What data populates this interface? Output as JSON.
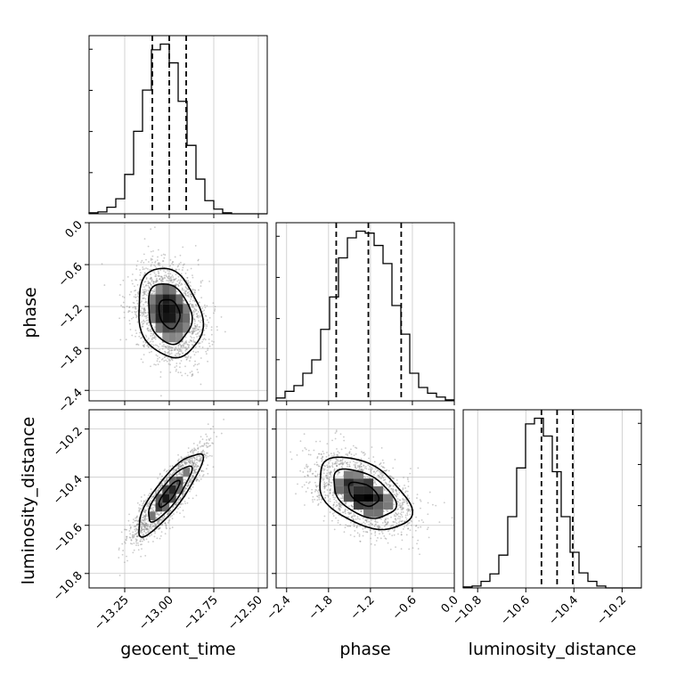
{
  "chart_data": {
    "type": "corner",
    "parameters": [
      "geocent_time",
      "phase",
      "luminosity_distance"
    ],
    "ranges": {
      "geocent_time": [
        -13.45,
        -12.45
      ],
      "phase": [
        -2.55,
        0.0
      ],
      "luminosity_distance": [
        -10.86,
        -10.12
      ]
    },
    "ticks": {
      "geocent_time": [
        -13.25,
        -13.0,
        -12.75,
        -12.5
      ],
      "phase": [
        -2.4,
        -1.8,
        -1.2,
        -0.6,
        0.0
      ],
      "luminosity_distance": [
        -10.8,
        -10.6,
        -10.4,
        -10.2
      ]
    },
    "tick_labels": {
      "geocent_time": [
        "−13.25",
        "−13.00",
        "−12.75",
        "−12.50"
      ],
      "phase": [
        "−2.4",
        "−1.8",
        "−1.2",
        "−0.6",
        "0.0"
      ],
      "luminosity_distance": [
        "−10.8",
        "−10.6",
        "−10.4",
        "−10.2"
      ]
    },
    "quantiles": {
      "geocent_time": [
        -13.095,
        -13.0,
        -12.905
      ],
      "phase": [
        -1.69,
        -1.23,
        -0.76
      ],
      "luminosity_distance": [
        -10.535,
        -10.47,
        -10.405
      ]
    },
    "histograms": {
      "geocent_time": {
        "edges": [
          -13.45,
          -13.4,
          -13.35,
          -13.3,
          -13.25,
          -13.2,
          -13.15,
          -13.1,
          -13.05,
          -13.0,
          -12.95,
          -12.9,
          -12.85,
          -12.8,
          -12.75,
          -12.7,
          -12.65,
          -12.6,
          -12.55,
          -12.5,
          -12.45
        ],
        "counts": [
          1,
          2,
          7,
          16,
          42,
          88,
          132,
          175,
          181,
          161,
          120,
          73,
          37,
          14,
          5,
          1,
          0,
          0,
          0,
          0
        ]
      },
      "phase": {
        "edges": [
          -2.55,
          -2.4225,
          -2.295,
          -2.1675,
          -2.04,
          -1.9125,
          -1.785,
          -1.6575,
          -1.53,
          -1.4025,
          -1.275,
          -1.1475,
          -1.02,
          -0.8925,
          -0.765,
          -0.6375,
          -0.51,
          -0.3825,
          -0.255,
          -0.1275,
          0.0
        ],
        "counts": [
          3,
          10,
          16,
          29,
          43,
          75,
          109,
          150,
          171,
          178,
          176,
          163,
          144,
          100,
          70,
          29,
          14,
          8,
          4,
          1
        ]
      },
      "luminosity_distance": {
        "edges": [
          -10.86,
          -10.823,
          -10.786,
          -10.749,
          -10.712,
          -10.675,
          -10.638,
          -10.601,
          -10.564,
          -10.527,
          -10.49,
          -10.453,
          -10.416,
          -10.379,
          -10.342,
          -10.305,
          -10.268,
          -10.231,
          -10.194,
          -10.157,
          -10.12
        ],
        "counts": [
          1,
          2,
          7,
          15,
          35,
          76,
          128,
          175,
          181,
          162,
          124,
          76,
          38,
          16,
          7,
          2,
          0,
          0,
          0,
          0
        ]
      }
    },
    "correlations": {
      "phase|geocent_time": {
        "center": [
          -13.0,
          -1.3
        ],
        "sigma": [
          0.09,
          0.32
        ],
        "rho": -0.2
      },
      "luminosity_distance|geocent_time": {
        "center": [
          -13.0,
          -10.47
        ],
        "sigma": [
          0.09,
          0.085
        ],
        "rho": 0.85
      },
      "luminosity_distance|phase": {
        "center": [
          -1.3,
          -10.47
        ],
        "sigma": [
          0.33,
          0.075
        ],
        "rho": -0.45
      }
    },
    "grid": true,
    "colors": {
      "line": "#000000",
      "grid": "#c8c8c8",
      "scatter": "#8c8c8c"
    }
  }
}
